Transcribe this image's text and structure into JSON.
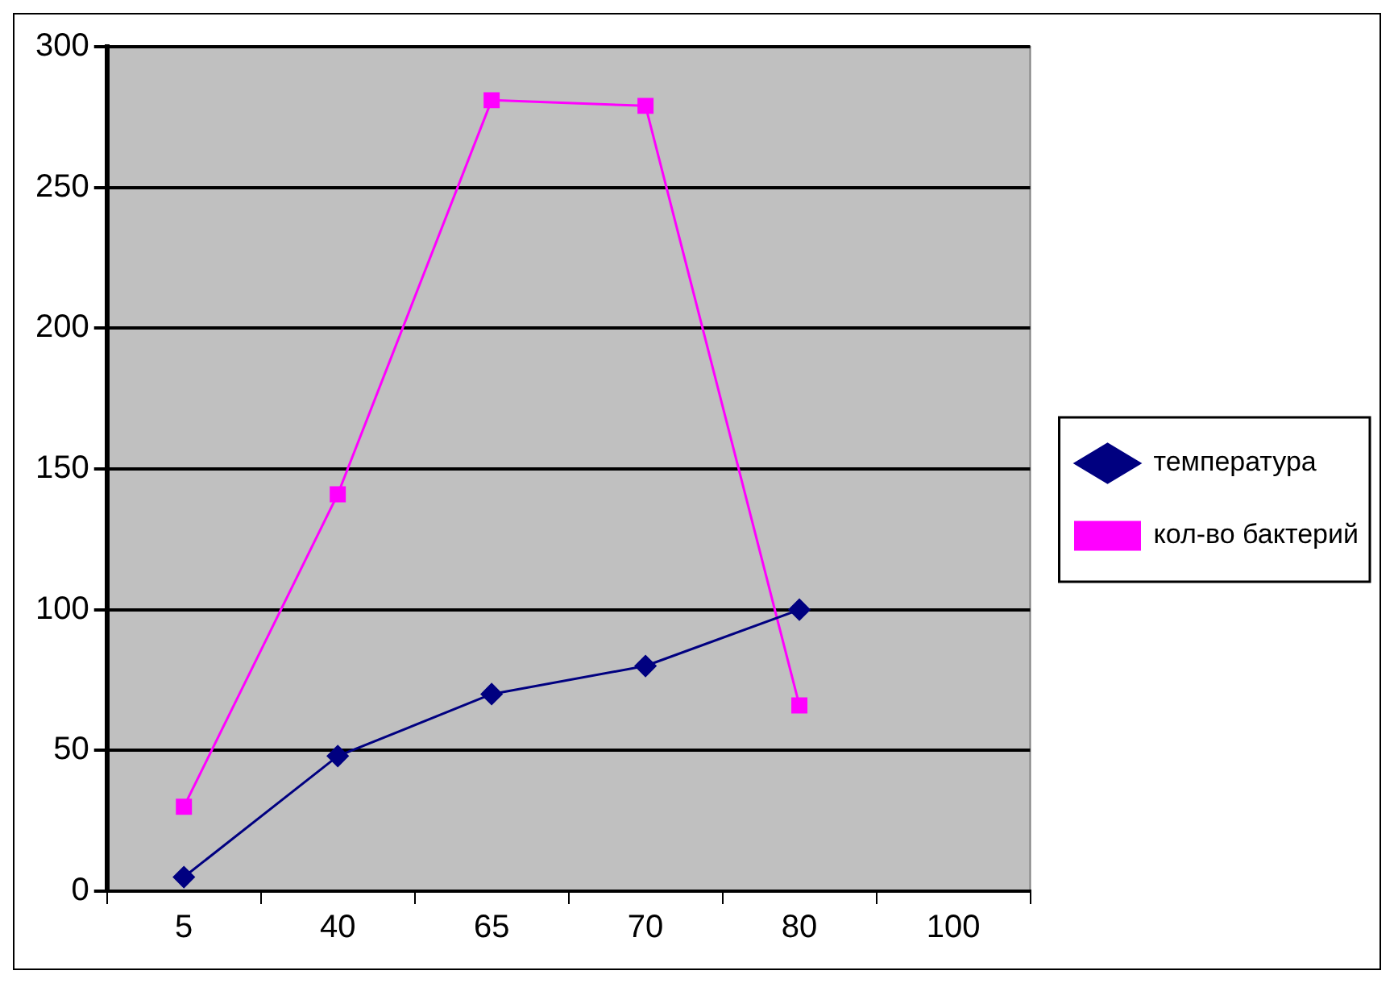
{
  "chart_data": {
    "type": "line",
    "categories": [
      "5",
      "40",
      "65",
      "70",
      "80",
      "100"
    ],
    "series": [
      {
        "name": "температура",
        "color": "#000080",
        "marker": "diamond",
        "values": [
          5,
          48,
          70,
          80,
          100,
          null
        ]
      },
      {
        "name": "кол-во бактерий",
        "color": "#ff00ff",
        "marker": "square",
        "values": [
          30,
          141,
          281,
          279,
          66,
          null
        ]
      }
    ],
    "ylim": [
      0,
      300
    ],
    "yticks": [
      0,
      50,
      100,
      150,
      200,
      250,
      300
    ],
    "grid": "y",
    "legend": "right"
  }
}
